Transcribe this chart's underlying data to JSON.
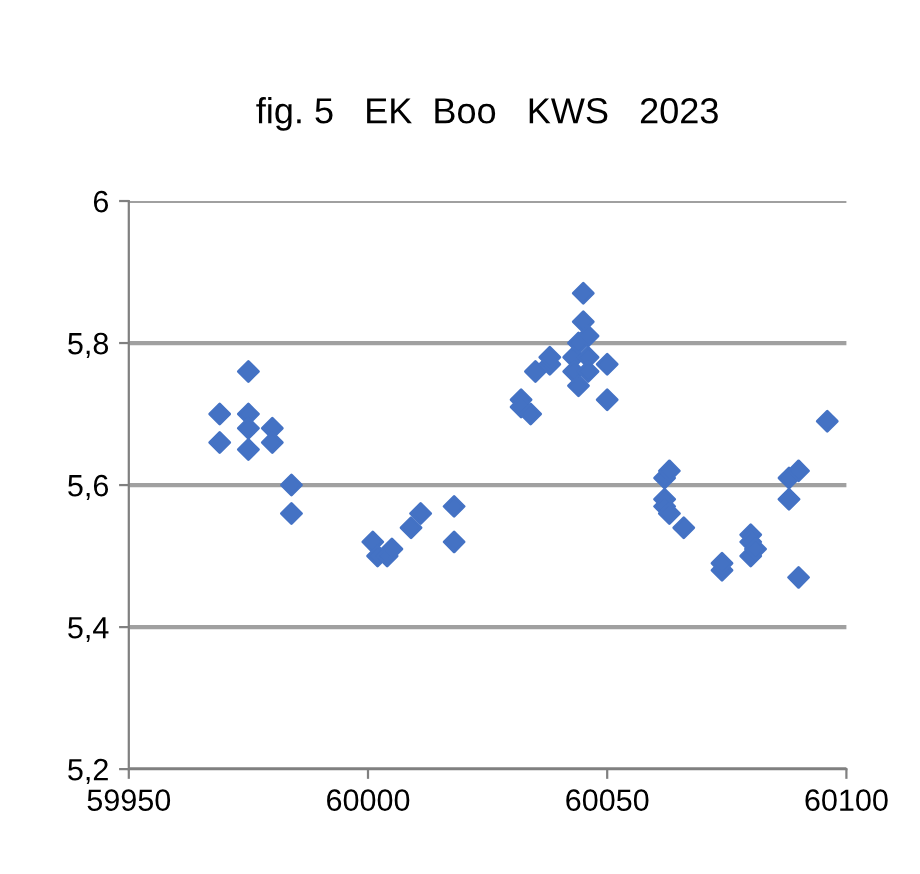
{
  "chart_data": {
    "type": "scatter",
    "title": "fig. 5   EK  Boo   KWS   2023",
    "x": [
      59969,
      59969,
      59975,
      59975,
      59975,
      59975,
      59980,
      59980,
      59984,
      59984,
      60001,
      60002,
      60004,
      60005,
      60009,
      60011,
      60018,
      60018,
      60032,
      60032,
      60034,
      60035,
      60038,
      60038,
      60043,
      60043,
      60044,
      60044,
      60045,
      60045,
      60046,
      60046,
      60046,
      60050,
      60050,
      60062,
      60062,
      60062,
      60063,
      60063,
      60066,
      60074,
      60074,
      60080,
      60080,
      60080,
      60081,
      60088,
      60088,
      60090,
      60090,
      60096
    ],
    "values": [
      5.66,
      5.7,
      5.76,
      5.7,
      5.68,
      5.65,
      5.68,
      5.66,
      5.6,
      5.56,
      5.52,
      5.5,
      5.5,
      5.51,
      5.54,
      5.56,
      5.57,
      5.52,
      5.72,
      5.71,
      5.7,
      5.76,
      5.77,
      5.78,
      5.78,
      5.76,
      5.8,
      5.74,
      5.87,
      5.83,
      5.81,
      5.78,
      5.76,
      5.77,
      5.72,
      5.61,
      5.58,
      5.57,
      5.62,
      5.56,
      5.54,
      5.48,
      5.49,
      5.5,
      5.53,
      5.52,
      5.51,
      5.58,
      5.61,
      5.47,
      5.62,
      5.69
    ],
    "color": "#4472c4",
    "marker": "diamond",
    "xlim": [
      59950,
      60100
    ],
    "xticks": [
      59950,
      60000,
      60050,
      60100
    ],
    "ylim": [
      5.2,
      6
    ],
    "yticks": [
      {
        "value": 5.2,
        "label": "5,2"
      },
      {
        "value": 5.4,
        "label": "5,4"
      },
      {
        "value": 5.6,
        "label": "5,6"
      },
      {
        "value": 5.8,
        "label": "5,8"
      },
      {
        "value": 6,
        "label": "6"
      }
    ],
    "grid": "y"
  }
}
